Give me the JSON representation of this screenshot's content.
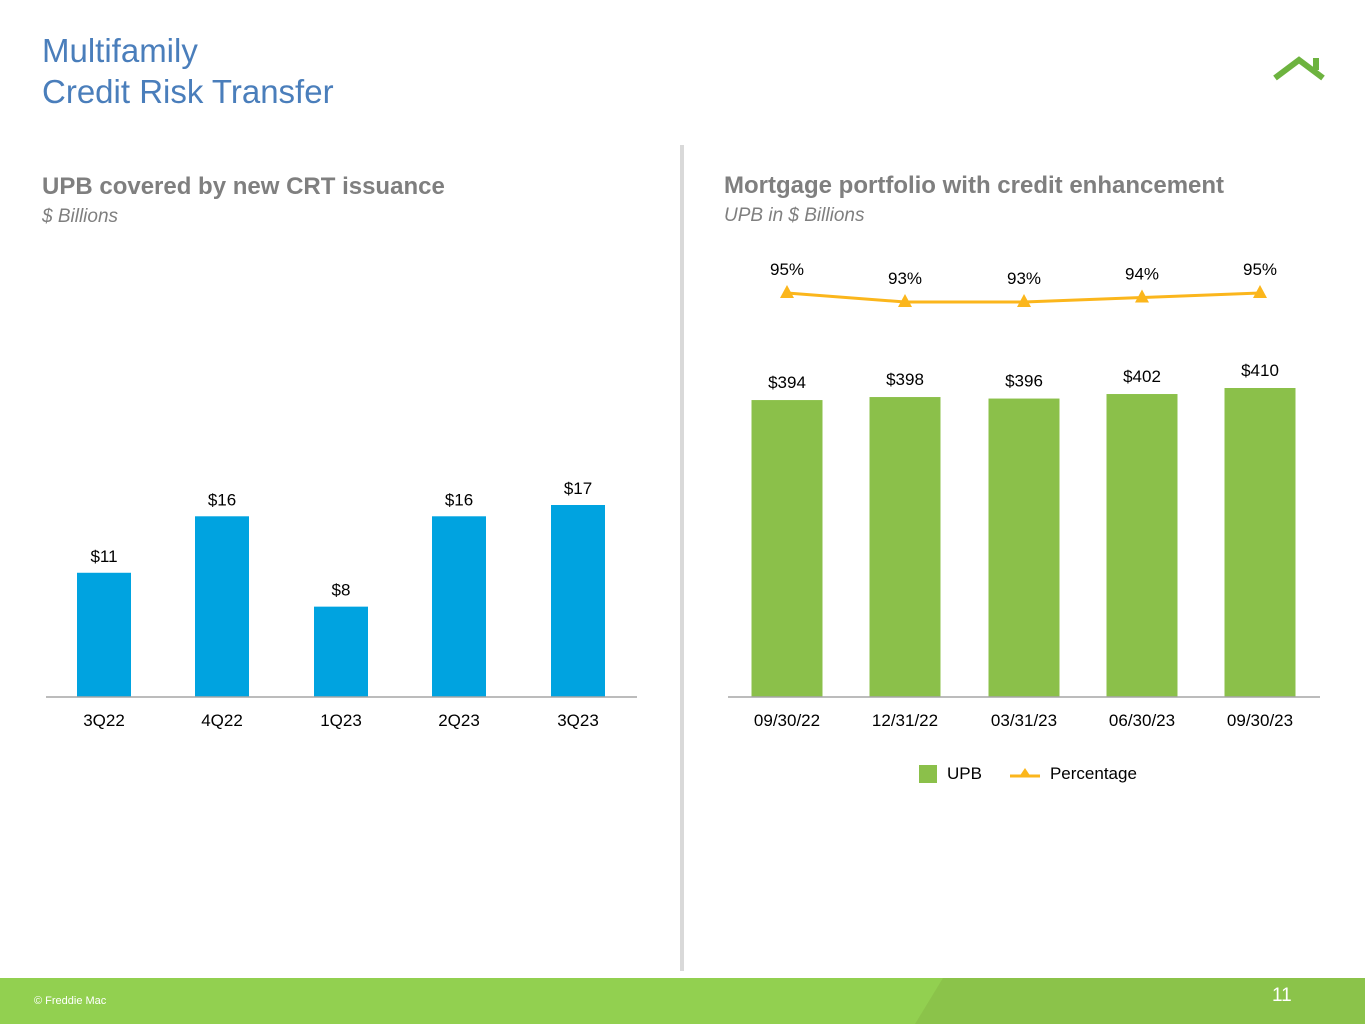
{
  "page": {
    "title_line1": "Multifamily",
    "title_line2": "Credit Risk Transfer",
    "copyright": "© Freddie Mac",
    "page_number": "11"
  },
  "colors": {
    "title": "#4a7ebb",
    "blue_bar": "#00a3e0",
    "green_bar": "#8bc04a",
    "line": "#fbb61c",
    "footer": "#92d050"
  },
  "left_panel": {
    "title": "UPB covered by new CRT issuance",
    "subtitle": "$ Billions"
  },
  "right_panel": {
    "title": "Mortgage portfolio with credit enhancement",
    "subtitle": "UPB in $ Billions",
    "legend_bar": "UPB",
    "legend_line": "Percentage"
  },
  "chart_data": [
    {
      "type": "bar",
      "title": "UPB covered by new CRT issuance",
      "ylabel": "$ Billions",
      "categories": [
        "3Q22",
        "4Q22",
        "1Q23",
        "2Q23",
        "3Q23"
      ],
      "values": [
        11,
        16,
        8,
        16,
        17
      ],
      "data_labels": [
        "$11",
        "$16",
        "$8",
        "$16",
        "$17"
      ],
      "ylim": [
        0,
        20
      ]
    },
    {
      "type": "bar",
      "title": "Mortgage portfolio with credit enhancement",
      "ylabel": "UPB in $ Billions",
      "categories": [
        "09/30/22",
        "12/31/22",
        "03/31/23",
        "06/30/23",
        "09/30/23"
      ],
      "series": [
        {
          "name": "UPB",
          "type": "bar",
          "values": [
            394,
            398,
            396,
            402,
            410
          ],
          "data_labels": [
            "$394",
            "$398",
            "$396",
            "$402",
            "$410"
          ]
        },
        {
          "name": "Percentage",
          "type": "line",
          "values": [
            95,
            93,
            93,
            94,
            95
          ],
          "data_labels": [
            "95%",
            "93%",
            "93%",
            "94%",
            "95%"
          ]
        }
      ],
      "ylim": [
        0,
        410
      ]
    }
  ]
}
